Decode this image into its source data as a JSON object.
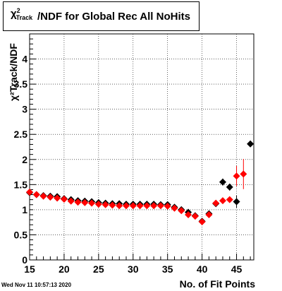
{
  "chart_data": {
    "type": "scatter",
    "title_symbol": "χ",
    "title_sup": "2",
    "title_sub": "Track",
    "title_rest": "/NDF for Global Rec All NoHits",
    "xlabel": "No. of Fit Points",
    "ylabel": "χ²Track/NDF",
    "xlim": [
      15,
      47.5
    ],
    "ylim": [
      0,
      4.5
    ],
    "xticks": [
      "15",
      "20",
      "25",
      "30",
      "35",
      "40",
      "45"
    ],
    "yticks": [
      "0",
      "0.5",
      "1",
      "1.5",
      "2",
      "2.5",
      "3",
      "3.5",
      "4"
    ],
    "grid": true,
    "series": [
      {
        "color": "#000000",
        "marker": "diamond",
        "x": [
          15,
          16,
          17,
          18,
          19,
          20,
          21,
          22,
          23,
          24,
          25,
          26,
          27,
          28,
          29,
          30,
          31,
          32,
          33,
          34,
          35,
          36,
          37,
          38,
          39,
          40,
          41,
          42,
          43,
          44,
          45,
          46,
          47
        ],
        "y": [
          1.34,
          1.3,
          1.28,
          1.27,
          1.26,
          1.22,
          1.2,
          1.18,
          1.17,
          1.16,
          1.14,
          1.13,
          1.12,
          1.12,
          1.11,
          1.11,
          1.11,
          1.11,
          1.11,
          1.1,
          1.1,
          1.05,
          1.0,
          0.95,
          0.88,
          0.77,
          0.92,
          1.12,
          1.55,
          1.45,
          1.16,
          null,
          2.31
        ],
        "err": [
          0,
          0,
          0,
          0,
          0,
          0,
          0,
          0,
          0,
          0,
          0,
          0,
          0,
          0,
          0,
          0,
          0,
          0,
          0,
          0,
          0,
          0,
          0,
          0,
          0,
          0,
          0,
          0,
          0.07,
          0.07,
          0.12,
          0,
          0
        ]
      },
      {
        "color": "#ff0000",
        "marker": "diamond",
        "x": [
          15,
          16,
          17,
          18,
          19,
          20,
          21,
          22,
          23,
          24,
          25,
          26,
          27,
          28,
          29,
          30,
          31,
          32,
          33,
          34,
          35,
          36,
          37,
          38,
          39,
          40,
          41,
          42,
          43,
          44,
          45,
          46
        ],
        "y": [
          1.35,
          1.3,
          1.27,
          1.25,
          1.23,
          1.21,
          1.17,
          1.15,
          1.14,
          1.13,
          1.11,
          1.1,
          1.09,
          1.08,
          1.08,
          1.08,
          1.08,
          1.08,
          1.08,
          1.08,
          1.07,
          1.03,
          0.98,
          0.9,
          0.87,
          0.76,
          0.9,
          1.13,
          1.18,
          1.2,
          1.67,
          1.71
        ],
        "err": [
          0,
          0,
          0,
          0,
          0,
          0,
          0,
          0,
          0,
          0,
          0,
          0,
          0,
          0,
          0,
          0,
          0,
          0,
          0,
          0,
          0,
          0,
          0,
          0,
          0,
          0,
          0,
          0,
          0,
          0,
          0.2,
          0.3
        ]
      }
    ]
  },
  "footer": "Wed Nov 11 10:57:13 2020"
}
